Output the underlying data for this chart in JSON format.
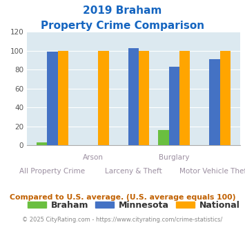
{
  "title_line1": "2019 Braham",
  "title_line2": "Property Crime Comparison",
  "categories": [
    "All Property Crime",
    "Arson",
    "Larceny & Theft",
    "Burglary",
    "Motor Vehicle Theft"
  ],
  "braham": [
    3,
    0,
    0,
    16,
    0
  ],
  "minnesota": [
    99,
    0,
    103,
    83,
    91
  ],
  "national": [
    100,
    100,
    100,
    100,
    100
  ],
  "bar_colors": {
    "braham": "#6abf40",
    "minnesota": "#4472c4",
    "national": "#ffa500"
  },
  "ylim": [
    0,
    120
  ],
  "yticks": [
    0,
    20,
    40,
    60,
    80,
    100,
    120
  ],
  "xlabel_color": "#9b8ea0",
  "title_color": "#1565c0",
  "background_color": "#dce9f0",
  "footer_text": "Compared to U.S. average. (U.S. average equals 100)",
  "footer_color": "#c06000",
  "credit_text": "© 2025 CityRating.com - https://www.cityrating.com/crime-statistics/",
  "credit_color": "#888888",
  "legend_labels": [
    "Braham",
    "Minnesota",
    "National"
  ],
  "top_labels": [
    "Arson",
    "Burglary"
  ],
  "bottom_labels": [
    "All Property Crime",
    "Larceny & Theft",
    "Motor Vehicle Theft"
  ]
}
